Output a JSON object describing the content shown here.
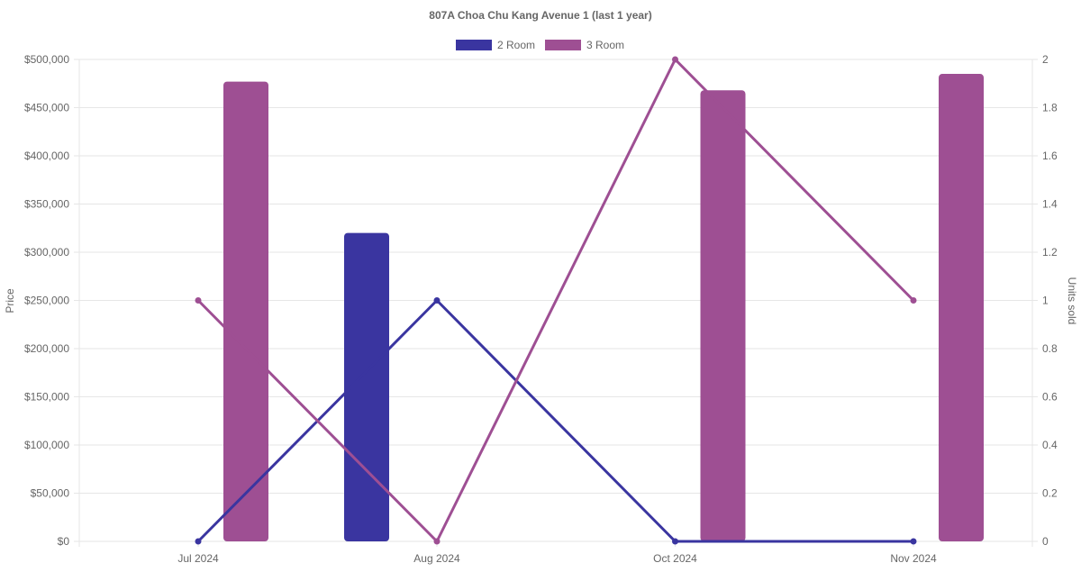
{
  "chart_data": {
    "type": "bar+line",
    "title": "807A Choa Chu Kang Avenue 1 (last 1 year)",
    "categories": [
      "Jul 2024",
      "Aug 2024",
      "Oct 2024",
      "Nov 2024"
    ],
    "y_left": {
      "label": "Price",
      "range": [
        0,
        500000
      ],
      "ticks": [
        0,
        50000,
        100000,
        150000,
        200000,
        250000,
        300000,
        350000,
        400000,
        450000,
        500000
      ],
      "tick_labels": [
        "$0",
        "$50,000",
        "$100,000",
        "$150,000",
        "$200,000",
        "$250,000",
        "$300,000",
        "$350,000",
        "$400,000",
        "$450,000",
        "$500,000"
      ]
    },
    "y_right": {
      "label": "Units sold",
      "range": [
        0,
        2
      ],
      "ticks": [
        0,
        0.2,
        0.4,
        0.6,
        0.8,
        1,
        1.2,
        1.4,
        1.6,
        1.8,
        2
      ],
      "tick_labels": [
        "0",
        "0.2",
        "0.4",
        "0.6",
        "0.8",
        "1",
        "1.2",
        "1.4",
        "1.6",
        "1.8",
        "2"
      ]
    },
    "grid": true,
    "legend_position": "top-center",
    "series": [
      {
        "name": "2 Room",
        "color": "#3a35a0",
        "price": [
          null,
          320000,
          null,
          null
        ],
        "units": [
          0,
          1,
          0,
          0
        ]
      },
      {
        "name": "3 Room",
        "color": "#9e4f93",
        "price": [
          477000,
          null,
          468000,
          485000
        ],
        "units": [
          1,
          0,
          2,
          1
        ]
      }
    ]
  }
}
